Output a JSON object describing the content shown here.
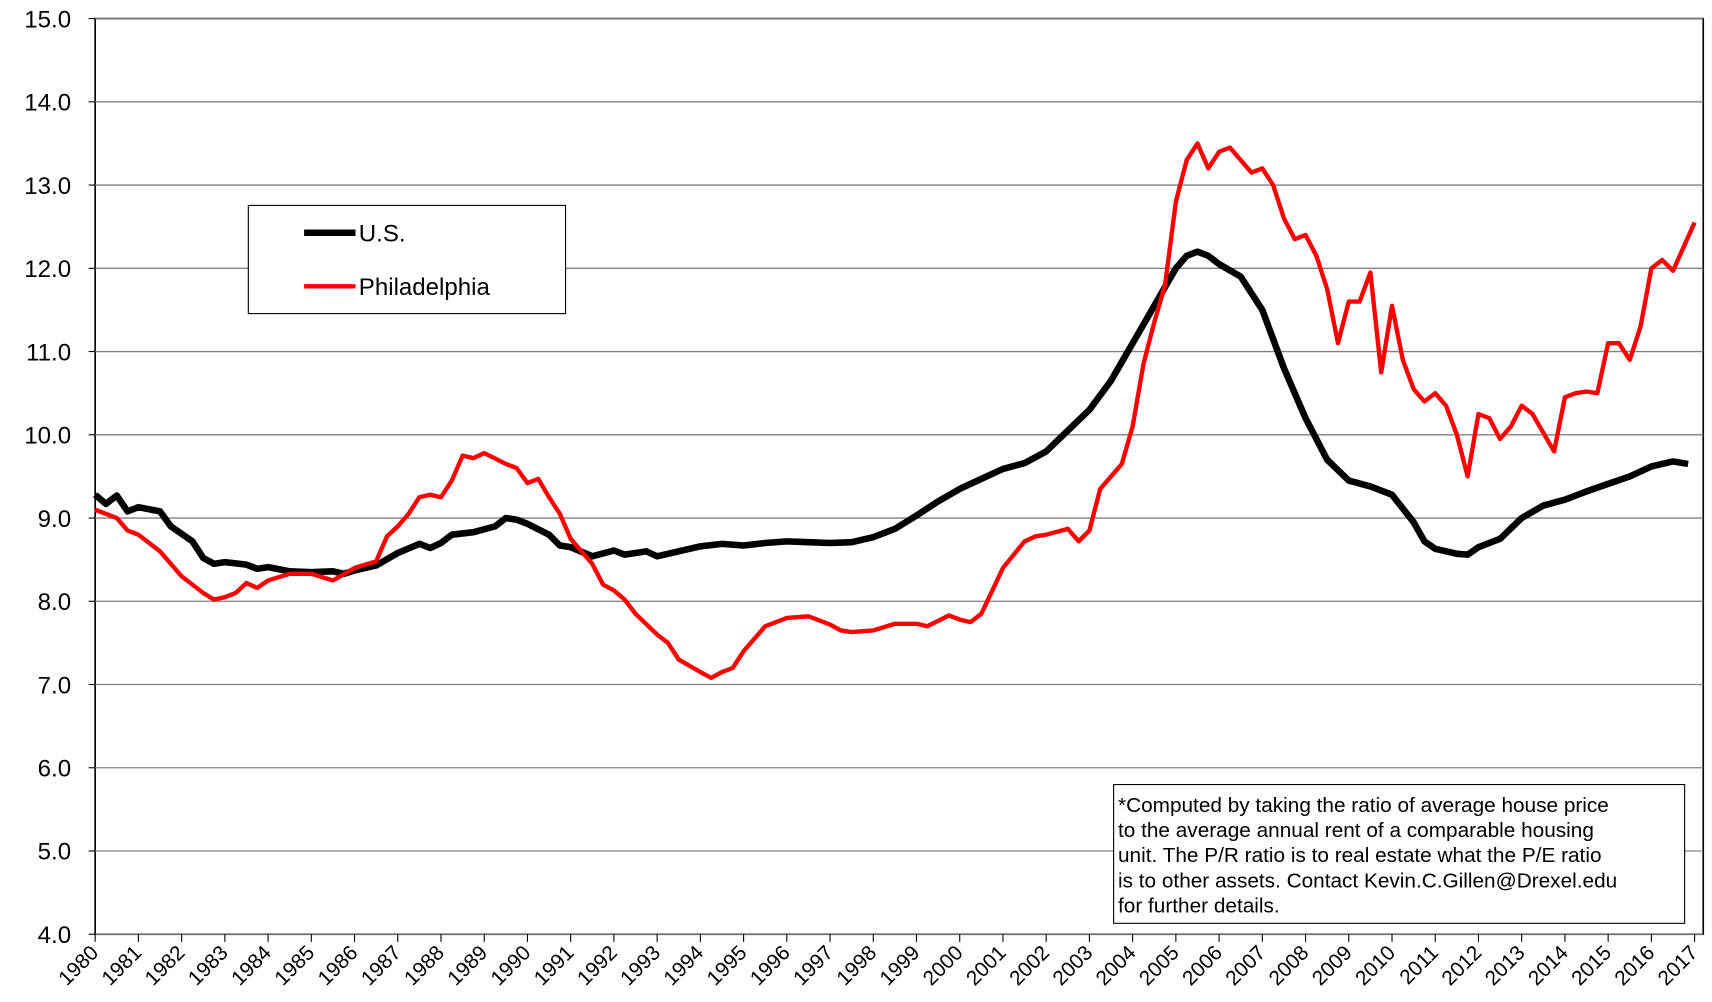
{
  "chart_data": {
    "type": "line",
    "xlim": [
      1980,
      2017.2
    ],
    "xticks": [
      1980,
      1981,
      1982,
      1983,
      1984,
      1985,
      1986,
      1987,
      1988,
      1989,
      1990,
      1991,
      1992,
      1993,
      1994,
      1995,
      1996,
      1997,
      1998,
      1999,
      2000,
      2001,
      2002,
      2003,
      2004,
      2005,
      2006,
      2007,
      2008,
      2009,
      2010,
      2011,
      2012,
      2013,
      2014,
      2015,
      2016,
      2017
    ],
    "ylim": [
      4,
      15
    ],
    "yticks": [
      {
        "value": 4,
        "label": "4.0"
      },
      {
        "value": 5,
        "label": "5.0"
      },
      {
        "value": 6,
        "label": "6.0"
      },
      {
        "value": 7,
        "label": "7.0"
      },
      {
        "value": 8,
        "label": "8.0"
      },
      {
        "value": 9,
        "label": "9.0"
      },
      {
        "value": 10,
        "label": "10.0"
      },
      {
        "value": 11,
        "label": "11.0"
      },
      {
        "value": 12,
        "label": "12.0"
      },
      {
        "value": 13,
        "label": "13.0"
      },
      {
        "value": 14,
        "label": "14.0"
      },
      {
        "value": 15,
        "label": "15.0"
      }
    ],
    "grid": true,
    "legend": "upper-left",
    "annotation": [
      "*Computed by taking the ratio of average house price",
      "to the average annual rent of a comparable housing",
      "unit.  The P/R ratio is to real estate what the P/E ratio",
      "is to other assets. Contact Kevin.C.Gillen@Drexel.edu",
      "for further details."
    ],
    "series": [
      {
        "name": "U.S.",
        "color": "#000000",
        "width": 6,
        "x": [
          1980,
          1980.25,
          1980.5,
          1980.75,
          1981,
          1981.5,
          1981.75,
          1982.25,
          1982.5,
          1982.75,
          1983,
          1983.5,
          1983.75,
          1984,
          1984.5,
          1985,
          1985.5,
          1985.75,
          1986,
          1986.5,
          1987,
          1987.5,
          1987.75,
          1988,
          1988.25,
          1988.75,
          1989.25,
          1989.5,
          1989.75,
          1990,
          1990.5,
          1990.75,
          1991,
          1991.5,
          1992,
          1992.25,
          1992.75,
          1993,
          1993.5,
          1994,
          1994.5,
          1995,
          1995.5,
          1996,
          1996.5,
          1997,
          1997.5,
          1998,
          1998.5,
          1999,
          1999.5,
          2000,
          2000.5,
          2001,
          2001.5,
          2002,
          2002.5,
          2003,
          2003.5,
          2004,
          2004.5,
          2005,
          2005.25,
          2005.5,
          2005.75,
          2006,
          2006.5,
          2007,
          2007.5,
          2008,
          2008.5,
          2009,
          2009.5,
          2010,
          2010.5,
          2010.75,
          2011,
          2011.5,
          2011.75,
          2012,
          2012.5,
          2013,
          2013.5,
          2014,
          2014.5,
          2015,
          2015.5,
          2016,
          2016.5,
          2016.85
        ],
        "values": [
          9.28,
          9.17,
          9.27,
          9.08,
          9.13,
          9.08,
          8.9,
          8.72,
          8.52,
          8.45,
          8.47,
          8.44,
          8.39,
          8.41,
          8.36,
          8.35,
          8.36,
          8.33,
          8.37,
          8.43,
          8.58,
          8.69,
          8.64,
          8.7,
          8.8,
          8.83,
          8.9,
          9.0,
          8.98,
          8.93,
          8.8,
          8.67,
          8.65,
          8.54,
          8.61,
          8.56,
          8.6,
          8.54,
          8.6,
          8.66,
          8.69,
          8.67,
          8.7,
          8.72,
          8.71,
          8.7,
          8.71,
          8.77,
          8.87,
          9.03,
          9.2,
          9.35,
          9.47,
          9.59,
          9.66,
          9.8,
          10.05,
          10.3,
          10.65,
          11.1,
          11.55,
          12.0,
          12.15,
          12.2,
          12.15,
          12.05,
          11.9,
          11.5,
          10.8,
          10.2,
          9.7,
          9.45,
          9.38,
          9.28,
          8.95,
          8.72,
          8.63,
          8.57,
          8.56,
          8.65,
          8.75,
          9.0,
          9.15,
          9.22,
          9.32,
          9.41,
          9.5,
          9.62,
          9.68,
          9.65
        ]
      },
      {
        "name": "Philadelphia",
        "color": "#ff0000",
        "width": 4,
        "x": [
          1980,
          1980.5,
          1980.75,
          1981,
          1981.5,
          1982,
          1982.5,
          1982.75,
          1983,
          1983.25,
          1983.5,
          1983.75,
          1984,
          1984.5,
          1985,
          1985.5,
          1986,
          1986.5,
          1986.75,
          1987,
          1987.25,
          1987.5,
          1987.75,
          1988,
          1988.25,
          1988.5,
          1988.75,
          1989,
          1989.5,
          1989.75,
          1990,
          1990.25,
          1990.5,
          1990.75,
          1991,
          1991.5,
          1991.75,
          1992,
          1992.25,
          1992.5,
          1993,
          1993.25,
          1993.5,
          1994,
          1994.25,
          1994.5,
          1994.75,
          1995,
          1995.5,
          1996,
          1996.5,
          1997,
          1997.25,
          1997.5,
          1998,
          1998.5,
          1999,
          1999.25,
          1999.75,
          2000,
          2000.25,
          2000.5,
          2001,
          2001.5,
          2001.75,
          2002,
          2002.5,
          2002.75,
          2003,
          2003.25,
          2003.75,
          2004,
          2004.25,
          2004.5,
          2004.75,
          2005,
          2005.25,
          2005.5,
          2005.75,
          2006,
          2006.25,
          2006.5,
          2006.75,
          2007,
          2007.25,
          2007.5,
          2007.75,
          2008,
          2008.25,
          2008.5,
          2008.75,
          2009,
          2009.25,
          2009.5,
          2009.75,
          2010,
          2010.25,
          2010.5,
          2010.75,
          2011,
          2011.25,
          2011.5,
          2011.75,
          2012,
          2012.25,
          2012.5,
          2012.75,
          2013,
          2013.25,
          2013.75,
          2014,
          2014.25,
          2014.5,
          2014.75,
          2015,
          2015.25,
          2015.5,
          2015.75,
          2016,
          2016.25,
          2016.5,
          2017
        ],
        "values": [
          9.1,
          9.0,
          8.85,
          8.8,
          8.6,
          8.3,
          8.1,
          8.02,
          8.05,
          8.1,
          8.22,
          8.16,
          8.25,
          8.33,
          8.33,
          8.25,
          8.4,
          8.48,
          8.78,
          8.9,
          9.05,
          9.25,
          9.28,
          9.25,
          9.45,
          9.75,
          9.72,
          9.78,
          9.65,
          9.6,
          9.42,
          9.47,
          9.25,
          9.05,
          8.75,
          8.45,
          8.2,
          8.13,
          8.02,
          7.85,
          7.6,
          7.5,
          7.3,
          7.15,
          7.08,
          7.15,
          7.2,
          7.4,
          7.7,
          7.8,
          7.82,
          7.72,
          7.65,
          7.63,
          7.65,
          7.73,
          7.73,
          7.7,
          7.83,
          7.78,
          7.75,
          7.85,
          8.4,
          8.72,
          8.78,
          8.8,
          8.87,
          8.72,
          8.85,
          9.35,
          9.65,
          10.1,
          10.85,
          11.35,
          11.8,
          12.8,
          13.3,
          13.5,
          13.2,
          13.4,
          13.45,
          13.3,
          13.15,
          13.2,
          13.0,
          12.6,
          12.35,
          12.4,
          12.15,
          11.75,
          11.1,
          11.6,
          11.6,
          11.95,
          10.75,
          11.55,
          10.9,
          10.55,
          10.4,
          10.5,
          10.35,
          10.0,
          9.5,
          10.25,
          10.2,
          9.95,
          10.1,
          10.35,
          10.25,
          9.8,
          10.45,
          10.5,
          10.52,
          10.5,
          11.1,
          11.1,
          10.9,
          11.3,
          12.0,
          12.1,
          11.97,
          12.55
        ]
      }
    ]
  }
}
